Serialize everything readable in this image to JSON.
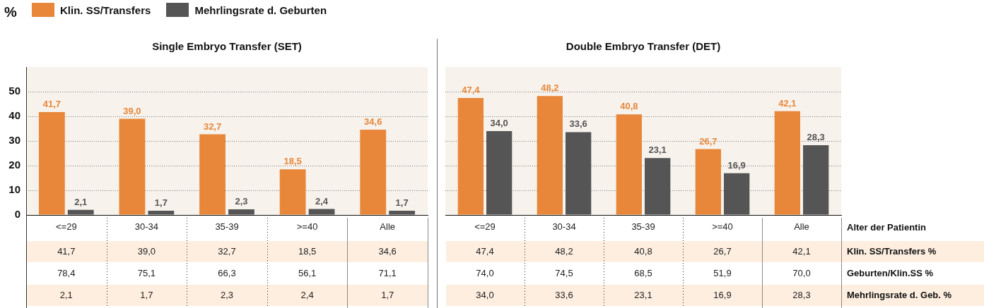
{
  "chart_data": [
    {
      "type": "bar",
      "title": "Single Embryo Transfer (SET)",
      "ylabel": "%",
      "categories": [
        "<=29",
        "30-34",
        "35-39",
        ">=40",
        "Alle"
      ],
      "series": [
        {
          "name": "Klin. SS/Transfers",
          "color": "#e8873a",
          "values": [
            41.7,
            39.0,
            32.7,
            18.5,
            34.6
          ],
          "value_labels": [
            "41,7",
            "39,0",
            "32,7",
            "18,5",
            "34,6"
          ]
        },
        {
          "name": "Mehrlingsrate d. Geburten",
          "color": "#555555",
          "values": [
            2.1,
            1.7,
            2.3,
            2.4,
            1.7
          ],
          "value_labels": [
            "2,1",
            "1,7",
            "2,3",
            "2,4",
            "1,7"
          ]
        }
      ],
      "ylim": [
        0,
        60
      ],
      "yticks": [
        0,
        10,
        20,
        30,
        40,
        50
      ],
      "grid": "y",
      "legend": "top left",
      "annotations": [
        "78,4",
        "75,1",
        "66,3",
        "56,1",
        "71,1"
      ]
    },
    {
      "type": "bar",
      "title": "Double Embryo Transfer (DET)",
      "xlabel": "Alter der Patientin",
      "categories": [
        "<=29",
        "30-34",
        "35-39",
        ">=40",
        "Alle"
      ],
      "series": [
        {
          "color": "#e8873a",
          "values": [
            47.4,
            48.2,
            40.8,
            26.7,
            42.1
          ],
          "value_labels": [
            "47,4",
            "48,2",
            "40,8",
            "26,7",
            "42,1"
          ]
        },
        {
          "color": "#555555",
          "values": [
            34.0,
            33.6,
            23.1,
            16.9,
            28.3
          ],
          "value_labels": [
            "34,0",
            "33,6",
            "23,1",
            "16,9",
            "28,3"
          ]
        }
      ],
      "ylim": [
        0,
        60
      ],
      "yticks": [
        0,
        10,
        20,
        30,
        40,
        50
      ],
      "grid": "y",
      "tick_labels": "x",
      "annotations": [
        "Klin. SS/Transfers %",
        "Geburten/Klin.SS %",
        "Mehrlingsrate d. Geb. %",
        "74,0",
        "74,5",
        "68,5",
        "51,9",
        "70,0"
      ]
    }
  ]
}
